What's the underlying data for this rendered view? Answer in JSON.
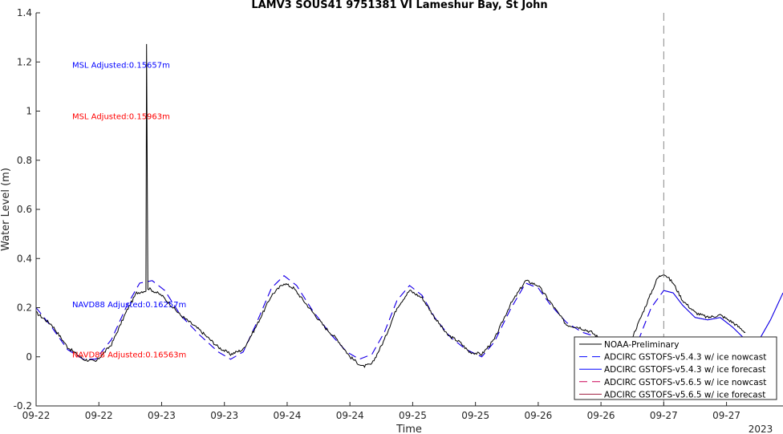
{
  "chart_data": {
    "type": "line",
    "title": "LAMV3 SOUS41 9751381 VI Lameshur Bay, St John",
    "xlabel": "Time",
    "ylabel": "Water Level (m)",
    "year_label": "2023",
    "ylim": [
      -0.2,
      1.4
    ],
    "xlim": [
      0,
      11.9
    ],
    "y_ticks": [
      -0.2,
      0,
      0.2,
      0.4,
      0.6,
      0.8,
      1,
      1.2,
      1.4
    ],
    "x_ticks": [
      0,
      1,
      2,
      3,
      4,
      5,
      6,
      7,
      8,
      9,
      10,
      11
    ],
    "x_tick_labels": [
      "09-22",
      "09-22",
      "09-23",
      "09-23",
      "09-24",
      "09-24",
      "09-25",
      "09-25",
      "09-26",
      "09-26",
      "09-27",
      "09-27"
    ],
    "x_unit_note": "x values in half-day intervals from 09-22 00:00",
    "vline_x": 10.0,
    "annotations": [
      {
        "text": "MSL Adjusted:0.15657m",
        "color": "#0000ff",
        "x": 0.6,
        "y": 1.19
      },
      {
        "text": "MSL Adjusted:0.15963m",
        "color": "#ff0000",
        "x": 0.6,
        "y": 0.98
      },
      {
        "text": "NAVD88 Adjusted:0.16257m",
        "color": "#0000ff",
        "x": 0.6,
        "y": 0.215
      },
      {
        "text": "NAVD88 Adjusted:0.16563m",
        "color": "#ff0000",
        "x": 0.6,
        "y": 0.01
      }
    ],
    "legend": {
      "placement": "bottom-right",
      "entries": [
        {
          "name": "NOAA-Preliminary",
          "color": "#000000",
          "dash": "solid"
        },
        {
          "name": "ADCIRC GSTOFS-v5.4.3 w/ ice nowcast",
          "color": "#0000ff",
          "dash": "dashed"
        },
        {
          "name": "ADCIRC GSTOFS-v5.4.3 w/ ice forecast",
          "color": "#0000ff",
          "dash": "solid"
        },
        {
          "name": "ADCIRC GSTOFS-v5.6.5 w/ ice nowcast",
          "color": "#cc0055",
          "dash": "dashed"
        },
        {
          "name": "ADCIRC GSTOFS-v5.6.5 w/ ice forecast",
          "color": "#a02040",
          "dash": "solid"
        }
      ]
    },
    "series": [
      {
        "name": "NOAA-Preliminary",
        "color": "#000000",
        "dash": "solid",
        "points": [
          [
            0.0,
            0.18
          ],
          [
            0.25,
            0.13
          ],
          [
            0.5,
            0.04
          ],
          [
            0.75,
            -0.01
          ],
          [
            0.95,
            -0.02
          ],
          [
            1.2,
            0.05
          ],
          [
            1.45,
            0.19
          ],
          [
            1.6,
            0.26
          ],
          [
            1.75,
            0.27
          ],
          [
            1.76,
            1.27
          ],
          [
            1.78,
            0.28
          ],
          [
            2.0,
            0.25
          ],
          [
            2.3,
            0.17
          ],
          [
            2.6,
            0.11
          ],
          [
            2.9,
            0.04
          ],
          [
            3.1,
            0.01
          ],
          [
            3.3,
            0.03
          ],
          [
            3.5,
            0.12
          ],
          [
            3.75,
            0.25
          ],
          [
            3.95,
            0.3
          ],
          [
            4.1,
            0.28
          ],
          [
            4.35,
            0.2
          ],
          [
            4.6,
            0.12
          ],
          [
            4.8,
            0.07
          ],
          [
            5.0,
            0.0
          ],
          [
            5.2,
            -0.04
          ],
          [
            5.35,
            -0.03
          ],
          [
            5.55,
            0.07
          ],
          [
            5.75,
            0.2
          ],
          [
            5.95,
            0.27
          ],
          [
            6.15,
            0.24
          ],
          [
            6.35,
            0.16
          ],
          [
            6.55,
            0.09
          ],
          [
            6.75,
            0.06
          ],
          [
            6.9,
            0.02
          ],
          [
            7.1,
            0.01
          ],
          [
            7.3,
            0.07
          ],
          [
            7.55,
            0.21
          ],
          [
            7.8,
            0.31
          ],
          [
            8.0,
            0.29
          ],
          [
            8.2,
            0.22
          ],
          [
            8.45,
            0.13
          ],
          [
            8.65,
            0.12
          ],
          [
            8.85,
            0.1
          ],
          [
            9.05,
            0.06
          ],
          [
            9.2,
            0.04
          ],
          [
            9.35,
            0.02
          ],
          [
            9.5,
            0.08
          ],
          [
            9.7,
            0.2
          ],
          [
            9.9,
            0.32
          ],
          [
            10.0,
            0.34
          ],
          [
            10.15,
            0.3
          ],
          [
            10.3,
            0.23
          ],
          [
            10.5,
            0.18
          ],
          [
            10.7,
            0.16
          ],
          [
            10.9,
            0.17
          ],
          [
            11.1,
            0.14
          ],
          [
            11.25,
            0.11
          ],
          [
            11.3,
            0.1
          ]
        ]
      },
      {
        "name": "ADCIRC GSTOFS-v5.4.3 w/ ice nowcast",
        "color": "#0000ff",
        "dash": "dashed",
        "points": [
          [
            0.0,
            0.2
          ],
          [
            0.25,
            0.12
          ],
          [
            0.5,
            0.03
          ],
          [
            0.75,
            -0.01
          ],
          [
            0.95,
            -0.01
          ],
          [
            1.2,
            0.07
          ],
          [
            1.45,
            0.21
          ],
          [
            1.65,
            0.3
          ],
          [
            1.85,
            0.31
          ],
          [
            2.05,
            0.27
          ],
          [
            2.3,
            0.17
          ],
          [
            2.6,
            0.09
          ],
          [
            2.9,
            0.02
          ],
          [
            3.1,
            -0.01
          ],
          [
            3.3,
            0.02
          ],
          [
            3.5,
            0.13
          ],
          [
            3.75,
            0.28
          ],
          [
            3.95,
            0.33
          ],
          [
            4.15,
            0.29
          ],
          [
            4.4,
            0.19
          ],
          [
            4.7,
            0.09
          ],
          [
            4.95,
            0.02
          ],
          [
            5.15,
            -0.01
          ],
          [
            5.35,
            0.01
          ],
          [
            5.55,
            0.1
          ],
          [
            5.75,
            0.23
          ],
          [
            5.95,
            0.29
          ],
          [
            6.15,
            0.25
          ],
          [
            6.35,
            0.16
          ],
          [
            6.6,
            0.08
          ],
          [
            6.85,
            0.03
          ],
          [
            7.1,
            0.0
          ],
          [
            7.3,
            0.06
          ],
          [
            7.55,
            0.19
          ],
          [
            7.8,
            0.3
          ],
          [
            8.0,
            0.28
          ],
          [
            8.2,
            0.21
          ],
          [
            8.45,
            0.14
          ],
          [
            8.7,
            0.1
          ],
          [
            8.95,
            0.08
          ],
          [
            9.2,
            0.04
          ],
          [
            9.4,
            0.02
          ],
          [
            9.6,
            0.07
          ],
          [
            9.8,
            0.2
          ],
          [
            10.0,
            0.27
          ]
        ]
      },
      {
        "name": "ADCIRC GSTOFS-v5.4.3 w/ ice forecast",
        "color": "#0000ff",
        "dash": "solid",
        "points": [
          [
            10.0,
            0.27
          ],
          [
            10.15,
            0.26
          ],
          [
            10.3,
            0.21
          ],
          [
            10.5,
            0.16
          ],
          [
            10.7,
            0.15
          ],
          [
            10.9,
            0.16
          ],
          [
            11.1,
            0.12
          ],
          [
            11.3,
            0.07
          ],
          [
            11.5,
            0.06
          ],
          [
            11.7,
            0.15
          ],
          [
            11.9,
            0.26
          ]
        ]
      },
      {
        "name": "ADCIRC GSTOFS-v5.6.5 w/ ice nowcast",
        "color": "#cc0055",
        "dash": "dashed",
        "points": [
          [
            0.0,
            0.2
          ],
          [
            0.25,
            0.12
          ],
          [
            0.5,
            0.03
          ],
          [
            0.75,
            -0.01
          ],
          [
            0.95,
            -0.01
          ],
          [
            1.2,
            0.07
          ],
          [
            1.45,
            0.21
          ],
          [
            1.65,
            0.3
          ],
          [
            1.85,
            0.31
          ],
          [
            2.05,
            0.27
          ],
          [
            2.3,
            0.17
          ],
          [
            2.6,
            0.09
          ],
          [
            2.9,
            0.02
          ],
          [
            3.1,
            -0.01
          ],
          [
            3.3,
            0.02
          ],
          [
            3.5,
            0.13
          ],
          [
            3.75,
            0.28
          ],
          [
            3.95,
            0.33
          ],
          [
            4.15,
            0.29
          ],
          [
            4.4,
            0.19
          ],
          [
            4.7,
            0.09
          ],
          [
            4.95,
            0.02
          ],
          [
            5.15,
            -0.01
          ],
          [
            5.35,
            0.01
          ],
          [
            5.55,
            0.1
          ],
          [
            5.75,
            0.23
          ],
          [
            5.95,
            0.29
          ],
          [
            6.15,
            0.25
          ],
          [
            6.35,
            0.16
          ],
          [
            6.6,
            0.08
          ],
          [
            6.85,
            0.03
          ],
          [
            7.1,
            0.0
          ],
          [
            7.3,
            0.06
          ],
          [
            7.55,
            0.19
          ],
          [
            7.8,
            0.3
          ],
          [
            8.0,
            0.28
          ],
          [
            8.2,
            0.21
          ],
          [
            8.45,
            0.14
          ],
          [
            8.7,
            0.1
          ],
          [
            8.95,
            0.08
          ],
          [
            9.2,
            0.04
          ],
          [
            9.4,
            0.02
          ],
          [
            9.6,
            0.07
          ],
          [
            9.8,
            0.2
          ],
          [
            10.0,
            0.27
          ]
        ]
      },
      {
        "name": "ADCIRC GSTOFS-v5.6.5 w/ ice forecast",
        "color": "#a02040",
        "dash": "solid",
        "points": [
          [
            10.0,
            0.27
          ],
          [
            10.15,
            0.26
          ],
          [
            10.3,
            0.21
          ],
          [
            10.5,
            0.16
          ],
          [
            10.7,
            0.15
          ],
          [
            10.9,
            0.16
          ],
          [
            11.1,
            0.12
          ],
          [
            11.3,
            0.07
          ],
          [
            11.5,
            0.06
          ],
          [
            11.7,
            0.15
          ],
          [
            11.9,
            0.26
          ]
        ]
      }
    ]
  }
}
